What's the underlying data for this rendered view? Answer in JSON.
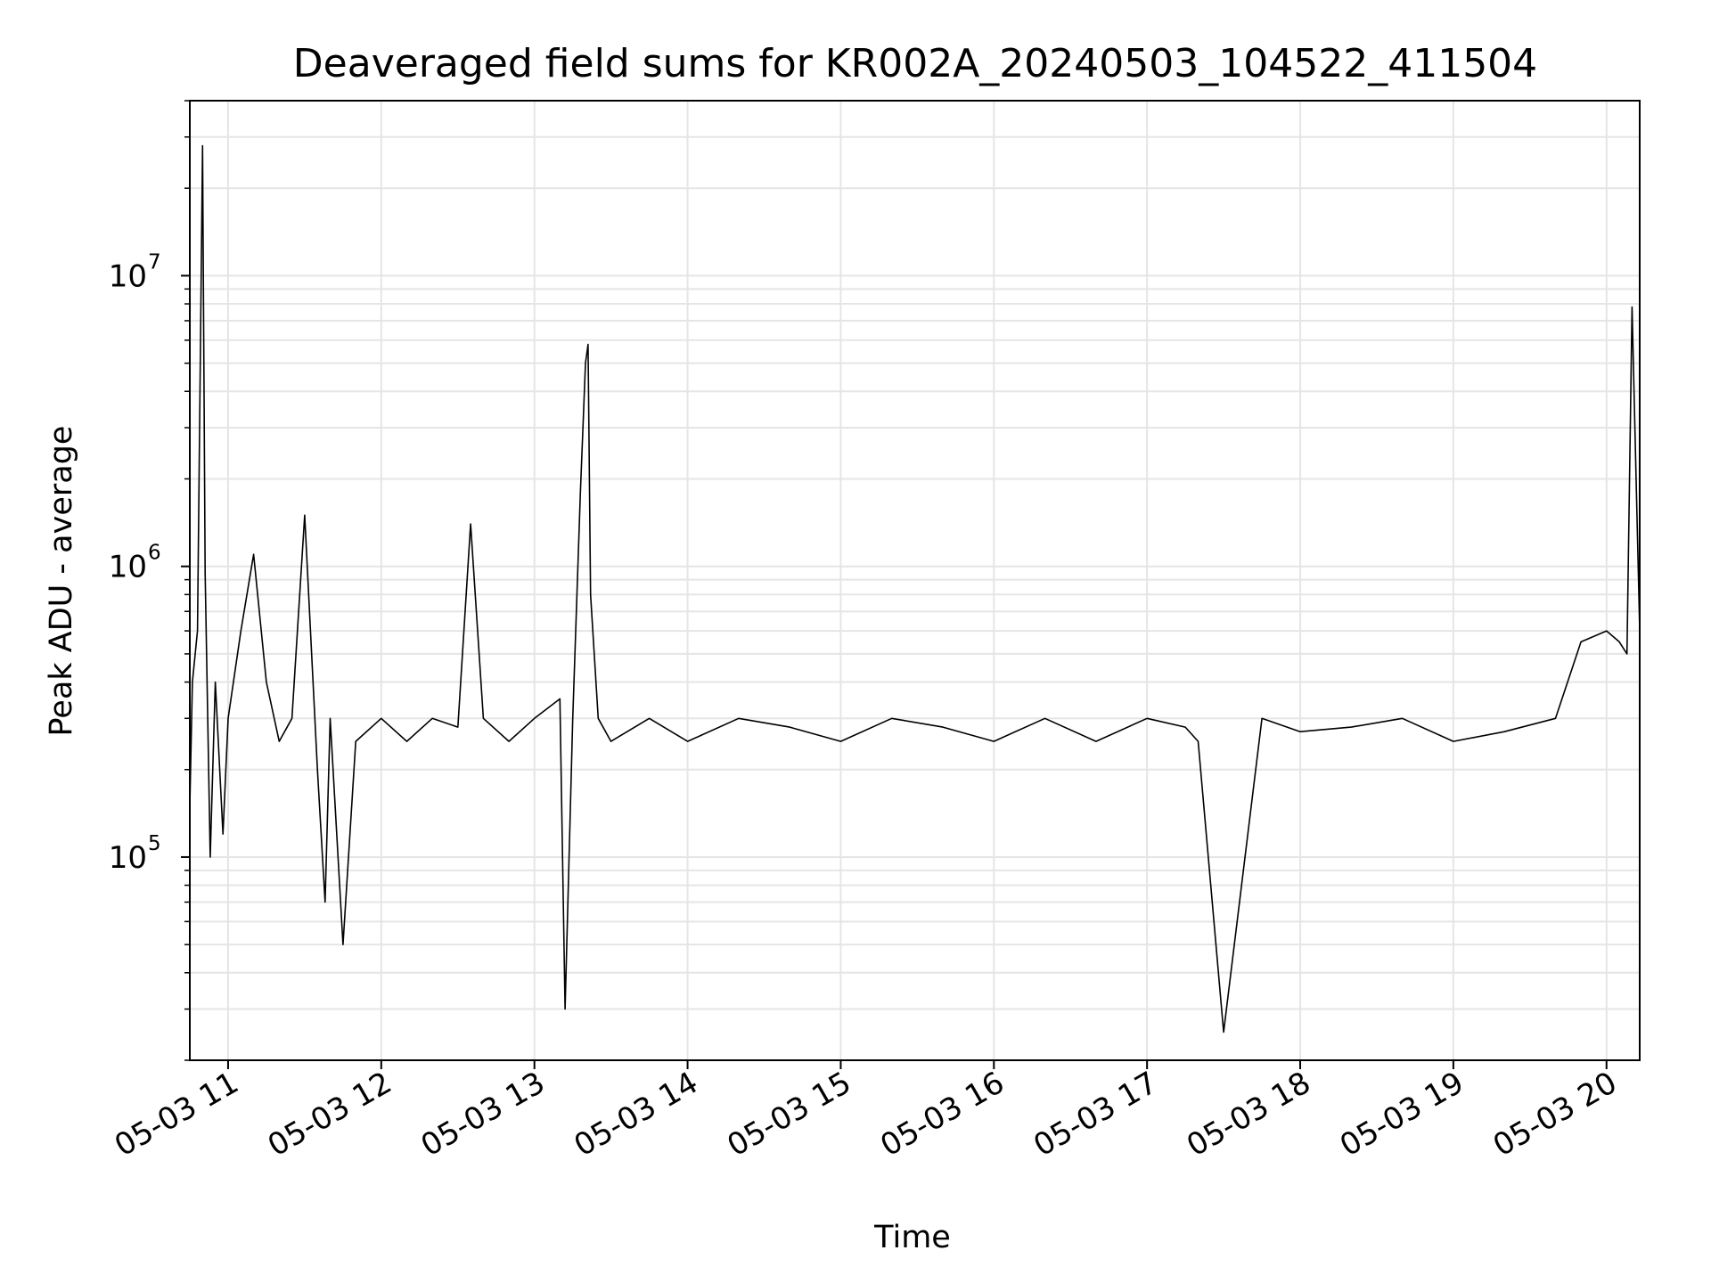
{
  "chart_data": {
    "type": "line",
    "title": "Deaveraged field sums for KR002A_20240503_104522_411504",
    "xlabel": "Time",
    "ylabel": "Peak ADU - average",
    "y_scale": "log",
    "ylim": [
      20000,
      40000000
    ],
    "x_start": "05-03 10:45",
    "x_end": "05-03 20:13",
    "grid": true,
    "line_color": "#000000",
    "grid_color": "#e5e5e5",
    "x_ticks": [
      "05-03 11",
      "05-03 12",
      "05-03 13",
      "05-03 14",
      "05-03 15",
      "05-03 16",
      "05-03 17",
      "05-03 18",
      "05-03 19",
      "05-03 20"
    ],
    "y_ticks": [
      {
        "base": "10",
        "exp": "5",
        "value": 100000
      },
      {
        "base": "10",
        "exp": "6",
        "value": 1000000
      },
      {
        "base": "10",
        "exp": "7",
        "value": 10000000
      }
    ],
    "series": [
      {
        "x": [
          "05-03 10:45",
          "05-03 10:46",
          "05-03 10:48",
          "05-03 10:50",
          "05-03 10:51",
          "05-03 10:52",
          "05-03 10:53",
          "05-03 10:55",
          "05-03 10:58",
          "05-03 11:00",
          "05-03 11:05",
          "05-03 11:10",
          "05-03 11:15",
          "05-03 11:20",
          "05-03 11:25",
          "05-03 11:30",
          "05-03 11:35",
          "05-03 11:38",
          "05-03 11:40",
          "05-03 11:45",
          "05-03 11:50",
          "05-03 12:00",
          "05-03 12:10",
          "05-03 12:20",
          "05-03 12:30",
          "05-03 12:35",
          "05-03 12:40",
          "05-03 12:50",
          "05-03 13:00",
          "05-03 13:10",
          "05-03 13:12",
          "05-03 13:15",
          "05-03 13:18",
          "05-03 13:20",
          "05-03 13:21",
          "05-03 13:22",
          "05-03 13:25",
          "05-03 13:30",
          "05-03 13:45",
          "05-03 14:00",
          "05-03 14:20",
          "05-03 14:40",
          "05-03 15:00",
          "05-03 15:20",
          "05-03 15:40",
          "05-03 16:00",
          "05-03 16:20",
          "05-03 16:40",
          "05-03 17:00",
          "05-03 17:15",
          "05-03 17:20",
          "05-03 17:30",
          "05-03 17:45",
          "05-03 18:00",
          "05-03 18:20",
          "05-03 18:40",
          "05-03 19:00",
          "05-03 19:20",
          "05-03 19:40",
          "05-03 19:50",
          "05-03 20:00",
          "05-03 20:05",
          "05-03 20:08",
          "05-03 20:10",
          "05-03 20:13"
        ],
        "y": [
          150000,
          400000,
          600000,
          28000000,
          950000,
          300000,
          100000,
          400000,
          120000,
          300000,
          600000,
          1100000,
          400000,
          250000,
          300000,
          1500000,
          200000,
          70000,
          300000,
          50000,
          250000,
          300000,
          250000,
          300000,
          280000,
          1400000,
          300000,
          250000,
          300000,
          350000,
          30000,
          300000,
          1800000,
          5000000,
          5800000,
          800000,
          300000,
          250000,
          300000,
          250000,
          300000,
          280000,
          250000,
          300000,
          280000,
          250000,
          300000,
          250000,
          300000,
          280000,
          250000,
          25000,
          300000,
          270000,
          280000,
          300000,
          250000,
          270000,
          300000,
          550000,
          600000,
          550000,
          500000,
          7800000,
          600000
        ]
      }
    ]
  }
}
